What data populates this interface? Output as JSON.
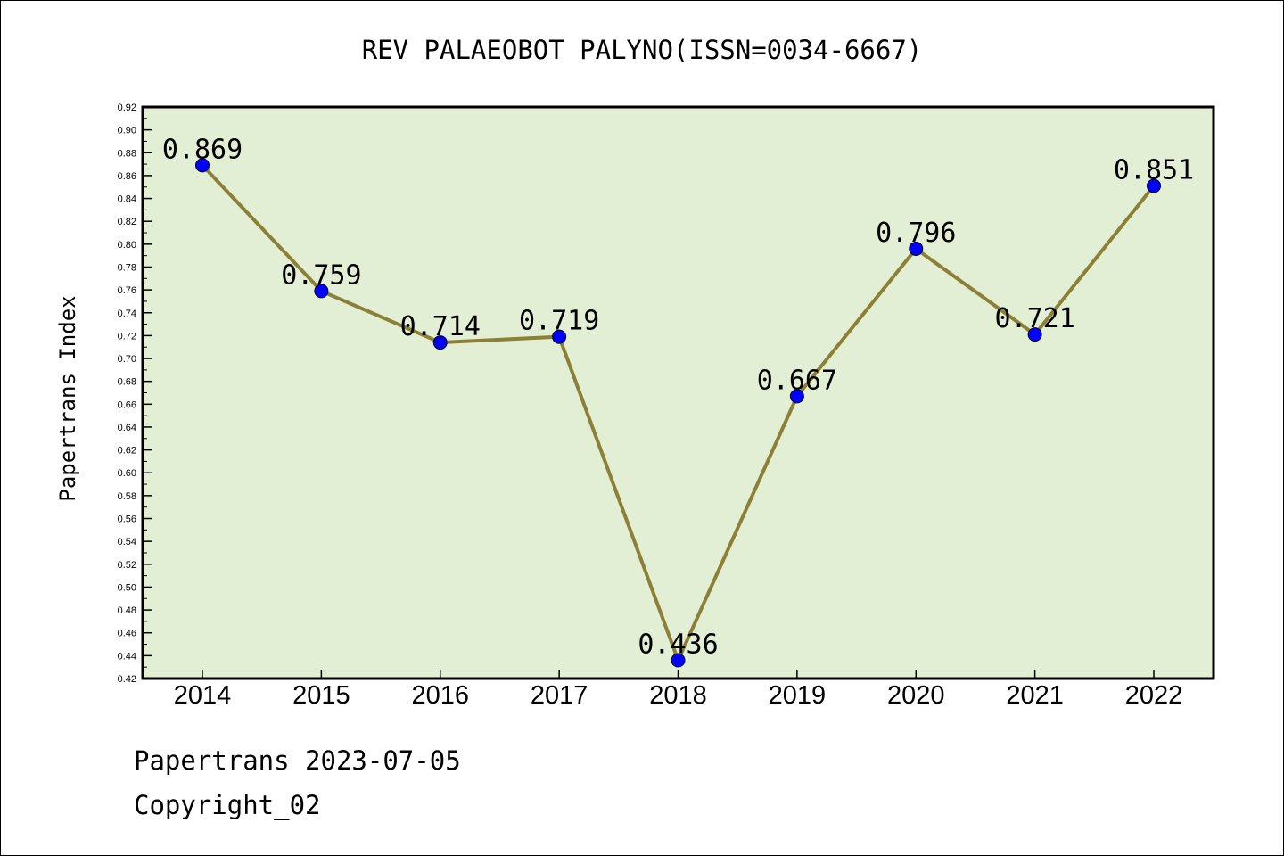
{
  "chart_data": {
    "type": "line",
    "title": "REV PALAEOBOT PALYNO(ISSN=0034-6667)",
    "xlabel": "",
    "ylabel": "Papertrans Index",
    "categories": [
      "2014",
      "2015",
      "2016",
      "2017",
      "2018",
      "2019",
      "2020",
      "2021",
      "2022"
    ],
    "values": [
      0.869,
      0.759,
      0.714,
      0.719,
      0.436,
      0.667,
      0.796,
      0.721,
      0.851
    ],
    "data_labels": [
      "0.869",
      "0.759",
      "0.714",
      "0.719",
      "0.436",
      "0.667",
      "0.796",
      "0.721",
      "0.851"
    ],
    "ylim": [
      0.42,
      0.92
    ],
    "yticks": [
      "0.42",
      "0.44",
      "0.46",
      "0.48",
      "0.50",
      "0.52",
      "0.54",
      "0.56",
      "0.58",
      "0.60",
      "0.62",
      "0.64",
      "0.66",
      "0.68",
      "0.70",
      "0.72",
      "0.74",
      "0.76",
      "0.78",
      "0.80",
      "0.82",
      "0.84",
      "0.86",
      "0.88",
      "0.90",
      "0.92"
    ],
    "grid": false,
    "colors": {
      "plot_background": "#e2efd5",
      "line": "#8b8035",
      "marker": "#0000ff"
    }
  },
  "footer": {
    "line1": "Papertrans 2023-07-05",
    "line2": "Copyright_02"
  }
}
